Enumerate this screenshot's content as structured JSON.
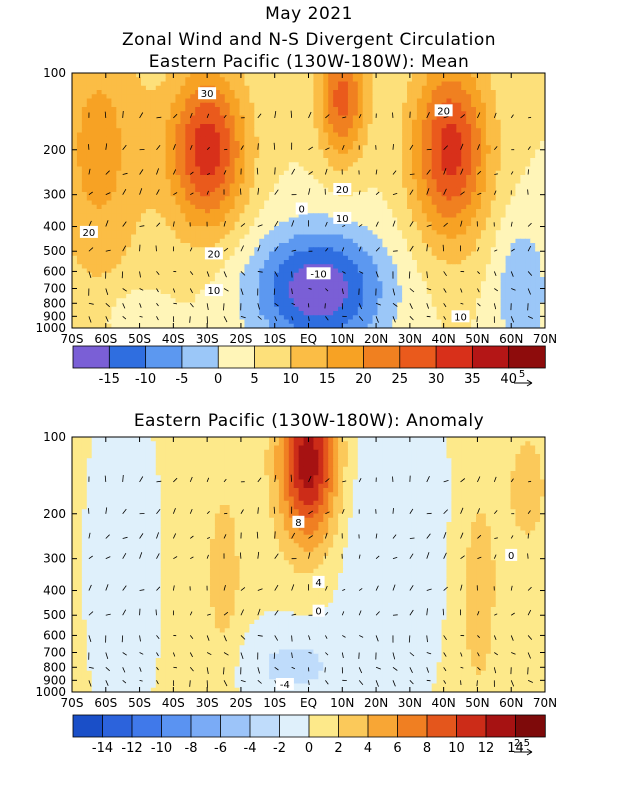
{
  "titles": {
    "line1": "May 2021",
    "line2": "Zonal Wind and N-S Divergent Circulation",
    "line3": "Eastern Pacific (130W-180W): Mean",
    "panel2": "Eastern Pacific (130W-180W): Anomaly"
  },
  "chart_data": [
    {
      "type": "heatmap",
      "title": "Eastern Pacific (130W-180W): Mean",
      "x_ticks": [
        "70S",
        "60S",
        "50S",
        "40S",
        "30S",
        "20S",
        "10S",
        "EQ",
        "10N",
        "20N",
        "30N",
        "40N",
        "50N",
        "60N",
        "70N"
      ],
      "x_values": [
        -70,
        -60,
        -50,
        -40,
        -30,
        -20,
        -10,
        0,
        10,
        20,
        30,
        40,
        50,
        60,
        70
      ],
      "y_ticks": [
        "100",
        "200",
        "300",
        "400",
        "500",
        "600",
        "700",
        "800",
        "900",
        "1000"
      ],
      "y_values": [
        100,
        200,
        300,
        400,
        500,
        600,
        700,
        800,
        900,
        1000
      ],
      "y_scale": "log",
      "ylim": [
        1000,
        100
      ],
      "xlim": [
        -70,
        70
      ],
      "colorbar": {
        "labels": [
          "-15",
          "-10",
          "-5",
          "0",
          "5",
          "10",
          "15",
          "20",
          "25",
          "30",
          "35",
          "40"
        ],
        "edges": [
          -20,
          -15,
          -10,
          -5,
          0,
          5,
          10,
          15,
          20,
          25,
          30,
          35,
          40,
          45
        ],
        "colors": [
          "#7a5fd6",
          "#2f6ee0",
          "#5c98f0",
          "#9bc7f8",
          "#fff5b8",
          "#fde07a",
          "#fbbd45",
          "#f7a224",
          "#f08020",
          "#ea5a1c",
          "#d8301a",
          "#b41616",
          "#8e0c0c"
        ]
      },
      "vector_reference": "5",
      "contour_labels": [
        {
          "text": "30",
          "x": -30,
          "y": 120
        },
        {
          "text": "20",
          "x": 40,
          "y": 140
        },
        {
          "text": "20",
          "x": 10,
          "y": 285
        },
        {
          "text": "10",
          "x": 10,
          "y": 370
        },
        {
          "text": "0",
          "x": -2,
          "y": 340
        },
        {
          "text": "20",
          "x": -65,
          "y": 420
        },
        {
          "text": "20",
          "x": -28,
          "y": 510
        },
        {
          "text": "10",
          "x": -28,
          "y": 710
        },
        {
          "text": "-10",
          "x": 3,
          "y": 610
        },
        {
          "text": "10",
          "x": 45,
          "y": 900
        }
      ]
    },
    {
      "type": "heatmap",
      "title": "Eastern Pacific (130W-180W): Anomaly",
      "x_ticks": [
        "70S",
        "60S",
        "50S",
        "40S",
        "30S",
        "20S",
        "10S",
        "EQ",
        "10N",
        "20N",
        "30N",
        "40N",
        "50N",
        "60N",
        "70N"
      ],
      "x_values": [
        -70,
        -60,
        -50,
        -40,
        -30,
        -20,
        -10,
        0,
        10,
        20,
        30,
        40,
        50,
        60,
        70
      ],
      "y_ticks": [
        "100",
        "200",
        "300",
        "400",
        "500",
        "600",
        "700",
        "800",
        "900",
        "1000"
      ],
      "y_values": [
        100,
        200,
        300,
        400,
        500,
        600,
        700,
        800,
        900,
        1000
      ],
      "y_scale": "log",
      "ylim": [
        1000,
        100
      ],
      "xlim": [
        -70,
        70
      ],
      "colorbar": {
        "labels": [
          "-14",
          "-12",
          "-10",
          "-8",
          "-6",
          "-4",
          "-2",
          "0",
          "2",
          "4",
          "6",
          "8",
          "10",
          "12",
          "14"
        ],
        "edges": [
          -16,
          -14,
          -12,
          -10,
          -8,
          -6,
          -4,
          -2,
          0,
          2,
          4,
          6,
          8,
          10,
          12,
          14,
          16
        ],
        "colors": [
          "#1a4fc8",
          "#2c63dc",
          "#4079ea",
          "#5a93f2",
          "#7aabf6",
          "#9cc4f9",
          "#bfdcfb",
          "#dff0fb",
          "#fde98a",
          "#fbc95a",
          "#f8a635",
          "#f07f22",
          "#e4561c",
          "#cc2c18",
          "#a61212",
          "#7e0a0a"
        ]
      },
      "vector_reference": "2.5",
      "contour_labels": [
        {
          "text": "8",
          "x": -3,
          "y": 215
        },
        {
          "text": "4",
          "x": 3,
          "y": 370
        },
        {
          "text": "0",
          "x": 3,
          "y": 480
        },
        {
          "text": "0",
          "x": 60,
          "y": 290
        },
        {
          "text": "-4",
          "x": -7,
          "y": 930
        }
      ]
    }
  ]
}
